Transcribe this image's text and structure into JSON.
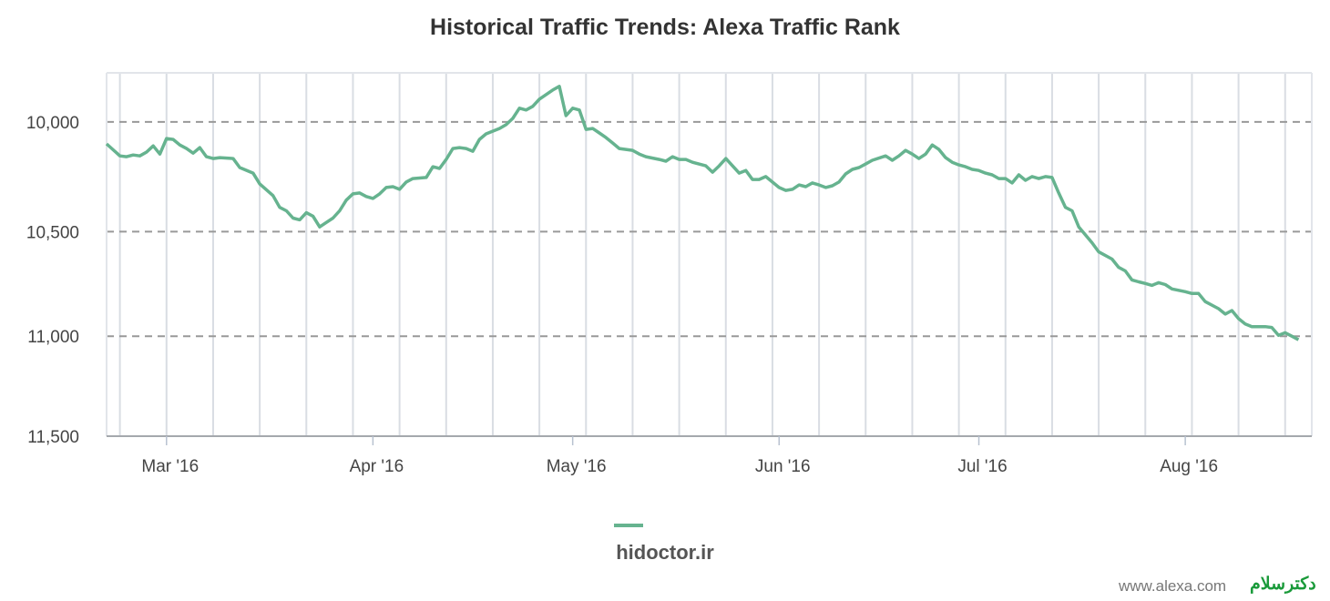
{
  "chart_data": {
    "type": "line",
    "title": "Historical Traffic Trends: Alexa Traffic Rank",
    "xlabel": "",
    "ylabel": "",
    "y_scale": "log",
    "y_reversed": true,
    "ylim": [
      9784,
      11500
    ],
    "xlim": [
      "2016-02-21",
      "2016-08-20"
    ],
    "y_ticks": [
      {
        "value": 10000,
        "label": "10,000"
      },
      {
        "value": 10500,
        "label": "10,500"
      },
      {
        "value": 11000,
        "label": "11,000"
      },
      {
        "value": 11500,
        "label": "11,500"
      }
    ],
    "x_ticks": [
      {
        "date": "2016-03-01",
        "label": "Mar '16"
      },
      {
        "date": "2016-04-01",
        "label": "Apr '16"
      },
      {
        "date": "2016-05-01",
        "label": "May '16"
      },
      {
        "date": "2016-06-01",
        "label": "Jun '16"
      },
      {
        "date": "2016-07-01",
        "label": "Jul '16"
      },
      {
        "date": "2016-08-01",
        "label": "Aug '16"
      }
    ],
    "grid": {
      "horizontal": "dashed",
      "vertical": "weekly"
    },
    "legend": {
      "placement": "bottom"
    },
    "series": [
      {
        "name": "hidoctor.ir",
        "color": "#66b38f",
        "points": [
          [
            "2016-02-21",
            10098
          ],
          [
            "2016-02-23",
            10152
          ],
          [
            "2016-02-24",
            10156
          ],
          [
            "2016-02-25",
            10148
          ],
          [
            "2016-02-26",
            10152
          ],
          [
            "2016-02-27",
            10135
          ],
          [
            "2016-02-28",
            10107
          ],
          [
            "2016-02-29",
            10144
          ],
          [
            "2016-03-01",
            10074
          ],
          [
            "2016-03-02",
            10078
          ],
          [
            "2016-03-03",
            10103
          ],
          [
            "2016-03-04",
            10119
          ],
          [
            "2016-03-05",
            10140
          ],
          [
            "2016-03-06",
            10115
          ],
          [
            "2016-03-07",
            10156
          ],
          [
            "2016-03-08",
            10164
          ],
          [
            "2016-03-09",
            10160
          ],
          [
            "2016-03-11",
            10164
          ],
          [
            "2016-03-12",
            10205
          ],
          [
            "2016-03-14",
            10230
          ],
          [
            "2016-03-15",
            10279
          ],
          [
            "2016-03-17",
            10333
          ],
          [
            "2016-03-18",
            10387
          ],
          [
            "2016-03-19",
            10403
          ],
          [
            "2016-03-20",
            10437
          ],
          [
            "2016-03-21",
            10445
          ],
          [
            "2016-03-22",
            10412
          ],
          [
            "2016-03-23",
            10428
          ],
          [
            "2016-03-24",
            10478
          ],
          [
            "2016-03-25",
            10457
          ],
          [
            "2016-03-26",
            10437
          ],
          [
            "2016-03-27",
            10403
          ],
          [
            "2016-03-28",
            10354
          ],
          [
            "2016-03-29",
            10325
          ],
          [
            "2016-03-30",
            10321
          ],
          [
            "2016-03-31",
            10337
          ],
          [
            "2016-04-01",
            10346
          ],
          [
            "2016-04-02",
            10325
          ],
          [
            "2016-04-03",
            10296
          ],
          [
            "2016-04-04",
            10292
          ],
          [
            "2016-04-05",
            10304
          ],
          [
            "2016-04-06",
            10271
          ],
          [
            "2016-04-07",
            10255
          ],
          [
            "2016-04-09",
            10250
          ],
          [
            "2016-04-10",
            10201
          ],
          [
            "2016-04-11",
            10209
          ],
          [
            "2016-04-12",
            10168
          ],
          [
            "2016-04-13",
            10119
          ],
          [
            "2016-04-14",
            10115
          ],
          [
            "2016-04-15",
            10119
          ],
          [
            "2016-04-16",
            10131
          ],
          [
            "2016-04-17",
            10078
          ],
          [
            "2016-04-18",
            10053
          ],
          [
            "2016-04-20",
            10029
          ],
          [
            "2016-04-21",
            10012
          ],
          [
            "2016-04-22",
            9984
          ],
          [
            "2016-04-23",
            9939
          ],
          [
            "2016-04-24",
            9947
          ],
          [
            "2016-04-25",
            9931
          ],
          [
            "2016-04-26",
            9899
          ],
          [
            "2016-04-27",
            9879
          ],
          [
            "2016-04-28",
            9859
          ],
          [
            "2016-04-29",
            9843
          ],
          [
            "2016-04-30",
            9972
          ],
          [
            "2016-05-01",
            9939
          ],
          [
            "2016-05-02",
            9947
          ],
          [
            "2016-05-03",
            10033
          ],
          [
            "2016-05-04",
            10029
          ],
          [
            "2016-05-05",
            10049
          ],
          [
            "2016-05-06",
            10070
          ],
          [
            "2016-05-07",
            10094
          ],
          [
            "2016-05-08",
            10119
          ],
          [
            "2016-05-09",
            10123
          ],
          [
            "2016-05-10",
            10127
          ],
          [
            "2016-05-11",
            10144
          ],
          [
            "2016-05-12",
            10156
          ],
          [
            "2016-05-14",
            10168
          ],
          [
            "2016-05-15",
            10176
          ],
          [
            "2016-05-16",
            10156
          ],
          [
            "2016-05-17",
            10168
          ],
          [
            "2016-05-18",
            10168
          ],
          [
            "2016-05-19",
            10181
          ],
          [
            "2016-05-21",
            10197
          ],
          [
            "2016-05-22",
            10226
          ],
          [
            "2016-05-23",
            10197
          ],
          [
            "2016-05-24",
            10164
          ],
          [
            "2016-05-25",
            10197
          ],
          [
            "2016-05-26",
            10230
          ],
          [
            "2016-05-27",
            10218
          ],
          [
            "2016-05-28",
            10259
          ],
          [
            "2016-05-29",
            10259
          ],
          [
            "2016-05-30",
            10246
          ],
          [
            "2016-05-31",
            10271
          ],
          [
            "2016-06-01",
            10296
          ],
          [
            "2016-06-02",
            10309
          ],
          [
            "2016-06-03",
            10304
          ],
          [
            "2016-06-04",
            10284
          ],
          [
            "2016-06-05",
            10292
          ],
          [
            "2016-06-06",
            10275
          ],
          [
            "2016-06-07",
            10284
          ],
          [
            "2016-06-08",
            10296
          ],
          [
            "2016-06-09",
            10288
          ],
          [
            "2016-06-10",
            10271
          ],
          [
            "2016-06-11",
            10234
          ],
          [
            "2016-06-12",
            10213
          ],
          [
            "2016-06-13",
            10205
          ],
          [
            "2016-06-14",
            10189
          ],
          [
            "2016-06-15",
            10172
          ],
          [
            "2016-06-17",
            10152
          ],
          [
            "2016-06-18",
            10172
          ],
          [
            "2016-06-19",
            10152
          ],
          [
            "2016-06-20",
            10127
          ],
          [
            "2016-06-21",
            10144
          ],
          [
            "2016-06-22",
            10164
          ],
          [
            "2016-06-23",
            10144
          ],
          [
            "2016-06-24",
            10103
          ],
          [
            "2016-06-25",
            10123
          ],
          [
            "2016-06-26",
            10160
          ],
          [
            "2016-06-27",
            10181
          ],
          [
            "2016-06-28",
            10193
          ],
          [
            "2016-06-29",
            10201
          ],
          [
            "2016-06-30",
            10213
          ],
          [
            "2016-07-01",
            10218
          ],
          [
            "2016-07-02",
            10230
          ],
          [
            "2016-07-03",
            10238
          ],
          [
            "2016-07-04",
            10255
          ],
          [
            "2016-07-05",
            10255
          ],
          [
            "2016-07-06",
            10275
          ],
          [
            "2016-07-07",
            10238
          ],
          [
            "2016-07-08",
            10263
          ],
          [
            "2016-07-09",
            10246
          ],
          [
            "2016-07-10",
            10255
          ],
          [
            "2016-07-11",
            10246
          ],
          [
            "2016-07-12",
            10250
          ],
          [
            "2016-07-13",
            10321
          ],
          [
            "2016-07-14",
            10387
          ],
          [
            "2016-07-15",
            10403
          ],
          [
            "2016-07-16",
            10478
          ],
          [
            "2016-07-18",
            10552
          ],
          [
            "2016-07-19",
            10595
          ],
          [
            "2016-07-21",
            10629
          ],
          [
            "2016-07-22",
            10668
          ],
          [
            "2016-07-23",
            10685
          ],
          [
            "2016-07-24",
            10728
          ],
          [
            "2016-07-25",
            10737
          ],
          [
            "2016-07-26",
            10745
          ],
          [
            "2016-07-27",
            10754
          ],
          [
            "2016-07-28",
            10741
          ],
          [
            "2016-07-29",
            10750
          ],
          [
            "2016-07-30",
            10771
          ],
          [
            "2016-08-01",
            10784
          ],
          [
            "2016-08-02",
            10793
          ],
          [
            "2016-08-03",
            10793
          ],
          [
            "2016-08-04",
            10832
          ],
          [
            "2016-08-06",
            10866
          ],
          [
            "2016-08-07",
            10892
          ],
          [
            "2016-08-08",
            10875
          ],
          [
            "2016-08-09",
            10914
          ],
          [
            "2016-08-10",
            10940
          ],
          [
            "2016-08-11",
            10953
          ],
          [
            "2016-08-13",
            10953
          ],
          [
            "2016-08-14",
            10957
          ],
          [
            "2016-08-15",
            10996
          ],
          [
            "2016-08-16",
            10983
          ],
          [
            "2016-08-17",
            11000
          ],
          [
            "2016-08-18",
            11017
          ]
        ]
      }
    ]
  },
  "footer": {
    "credit": "www.alexa.com",
    "watermark_logo": "دکترسلام"
  }
}
